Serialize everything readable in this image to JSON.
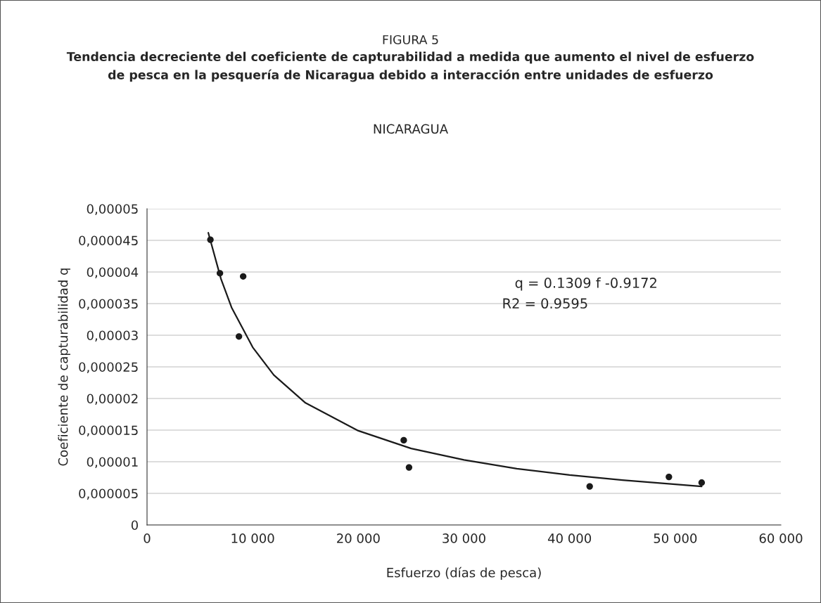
{
  "chart_data": {
    "type": "scatter",
    "title": "Tendencia decreciente del coeficiente de capturabilidad a medida que aumento el nivel de esfuerzo\nde pesca en la pesquería de Nicaragua debido a interacción entre unidades de esfuerzo",
    "subtitle": "NICARAGUA",
    "xlabel": "Esfuerzo (días de pesca)",
    "ylabel": "Coeficiente de capturabilidad q",
    "annotations": [
      "FIGURA 5",
      "q = 0.1309 f -0.9172",
      "R2 = 0.9595"
    ],
    "series": [
      {
        "color": "#1a1a1a",
        "marker": "circle",
        "x": [
          6000,
          6900,
          9100,
          8700,
          24300,
          24800,
          41900,
          49400,
          52500
        ],
        "values": [
          4.51e-05,
          3.98e-05,
          3.93e-05,
          2.98e-05,
          1.34e-05,
          9.1e-06,
          6.1e-06,
          7.6e-06,
          6.7e-06
        ]
      },
      {
        "type": "line",
        "color": "#1a1a1a",
        "marker": "none",
        "line_style": "solid",
        "x": [
          5800,
          7000,
          8000,
          10000,
          12000,
          15000,
          20000,
          25000,
          30000,
          35000,
          40000,
          45000,
          52500
        ],
        "values": [
          4.62e-05,
          3.89e-05,
          3.44e-05,
          2.81e-05,
          2.37e-05,
          1.93e-05,
          1.49e-05,
          1.21e-05,
          1.03e-05,
          8.9e-06,
          7.9e-06,
          7.1e-06,
          6.1e-06
        ]
      }
    ],
    "xlim": [
      0,
      60000
    ],
    "xticks": [
      0,
      {
        "value": 10000,
        "label": "10 000"
      },
      {
        "value": 20000,
        "label": "20 000"
      },
      {
        "value": 30000,
        "label": "30 000"
      },
      {
        "value": 40000,
        "label": "40 000"
      },
      {
        "value": 50000,
        "label": "50 000"
      },
      {
        "value": 60000,
        "label": "60 000"
      }
    ],
    "ylim": [
      0,
      5e-05
    ],
    "yticks": [
      0,
      {
        "value": 5e-06,
        "label": "0,000005"
      },
      {
        "value": 1e-05,
        "label": "0,00001"
      },
      {
        "value": 1.5e-05,
        "label": "0,000015"
      },
      {
        "value": 2e-05,
        "label": "0,00002"
      },
      {
        "value": 2.5e-05,
        "label": "0,000025"
      },
      {
        "value": 3e-05,
        "label": "0,00003"
      },
      {
        "value": 3.5e-05,
        "label": "0,000035"
      },
      {
        "value": 4e-05,
        "label": "0,00004"
      },
      {
        "value": 4.5e-05,
        "label": "0,000045"
      },
      {
        "value": 5e-05,
        "label": "0,00005"
      }
    ],
    "grid": "y",
    "legend": false
  }
}
